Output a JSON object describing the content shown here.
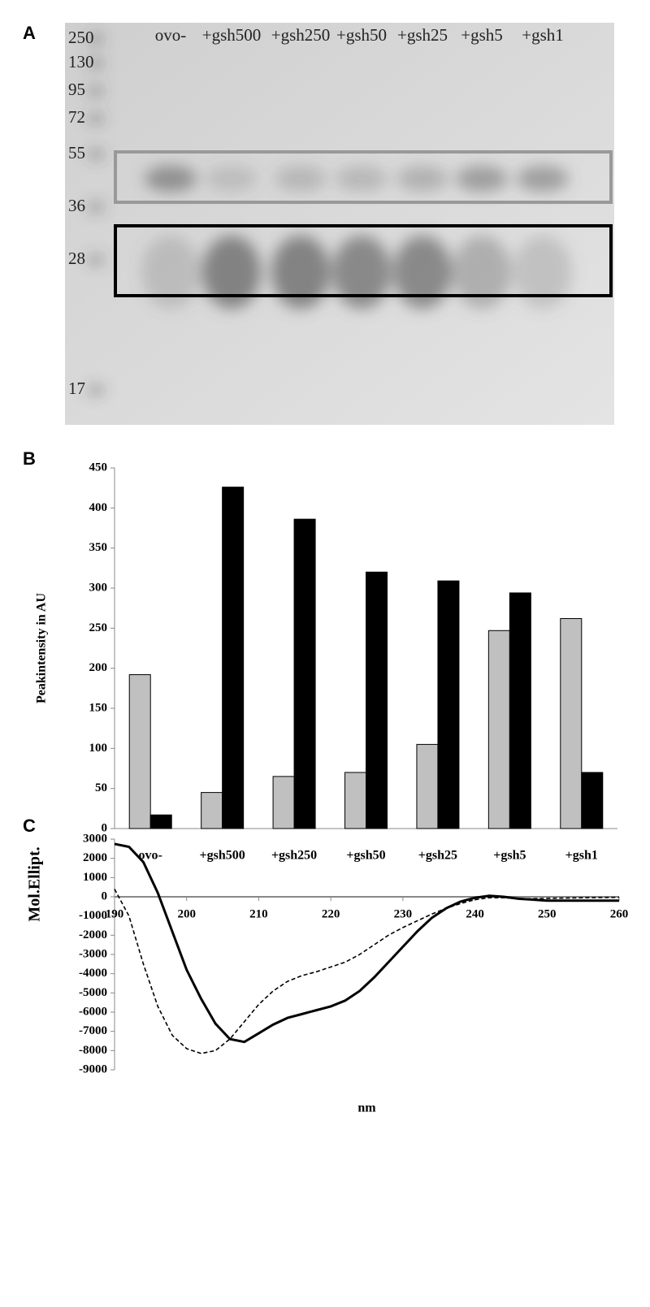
{
  "chart_data": [
    {
      "type": "gel",
      "panel": "A",
      "markers": [
        250,
        130,
        95,
        72,
        55,
        36,
        28,
        17
      ],
      "lanes": [
        "ovo-",
        "+gsh500",
        "+gsh250",
        "+gsh50",
        "+gsh25",
        "+gsh5",
        "+gsh1"
      ]
    },
    {
      "type": "bar",
      "panel": "B",
      "y_label": "Peakintensity in AU",
      "categories": [
        "ovo-",
        "+gsh500",
        "+gsh250",
        "+gsh50",
        "+gsh25",
        "+gsh5",
        "+gsh1"
      ],
      "series": [
        {
          "color": "#c0c0c0",
          "values": [
            192,
            45,
            65,
            70,
            105,
            247,
            262
          ]
        },
        {
          "color": "#000000",
          "values": [
            17,
            426,
            386,
            320,
            309,
            294,
            70
          ]
        }
      ],
      "ylim": [
        0,
        450
      ],
      "yticks": [
        0,
        50,
        100,
        150,
        200,
        250,
        300,
        350,
        400,
        450
      ]
    },
    {
      "type": "line",
      "panel": "C",
      "x_label": "nm",
      "y_label": "Mol.Ellipt.",
      "x": [
        190,
        192,
        194,
        196,
        198,
        200,
        202,
        204,
        206,
        208,
        210,
        212,
        214,
        216,
        218,
        220,
        222,
        224,
        226,
        228,
        230,
        232,
        234,
        236,
        238,
        240,
        242,
        244,
        246,
        248,
        250,
        255,
        260
      ],
      "series": [
        {
          "color": "#000000",
          "style": "solid",
          "values": [
            2750,
            2600,
            1800,
            200,
            -1800,
            -3800,
            -5300,
            -6600,
            -7400,
            -7550,
            -7100,
            -6650,
            -6300,
            -6100,
            -5900,
            -5700,
            -5400,
            -4900,
            -4200,
            -3400,
            -2600,
            -1800,
            -1100,
            -600,
            -250,
            -50,
            50,
            0,
            -100,
            -150,
            -200,
            -200,
            -200
          ]
        },
        {
          "color": "#000000",
          "style": "dashed",
          "values": [
            400,
            -1000,
            -3500,
            -5700,
            -7200,
            -7900,
            -8150,
            -8000,
            -7400,
            -6500,
            -5600,
            -4900,
            -4400,
            -4100,
            -3900,
            -3650,
            -3400,
            -3000,
            -2500,
            -2000,
            -1600,
            -1250,
            -900,
            -600,
            -350,
            -150,
            -50,
            -50,
            -100,
            -100,
            -80,
            -50,
            -30
          ]
        }
      ],
      "xlim": [
        190,
        260
      ],
      "xticks": [
        190,
        200,
        210,
        220,
        230,
        240,
        250,
        260
      ],
      "ylim": [
        -9000,
        3000
      ],
      "yticks": [
        3000,
        2000,
        1000,
        0,
        -1000,
        -2000,
        -3000,
        -4000,
        -5000,
        -6000,
        -7000,
        -8000,
        -9000
      ]
    }
  ]
}
